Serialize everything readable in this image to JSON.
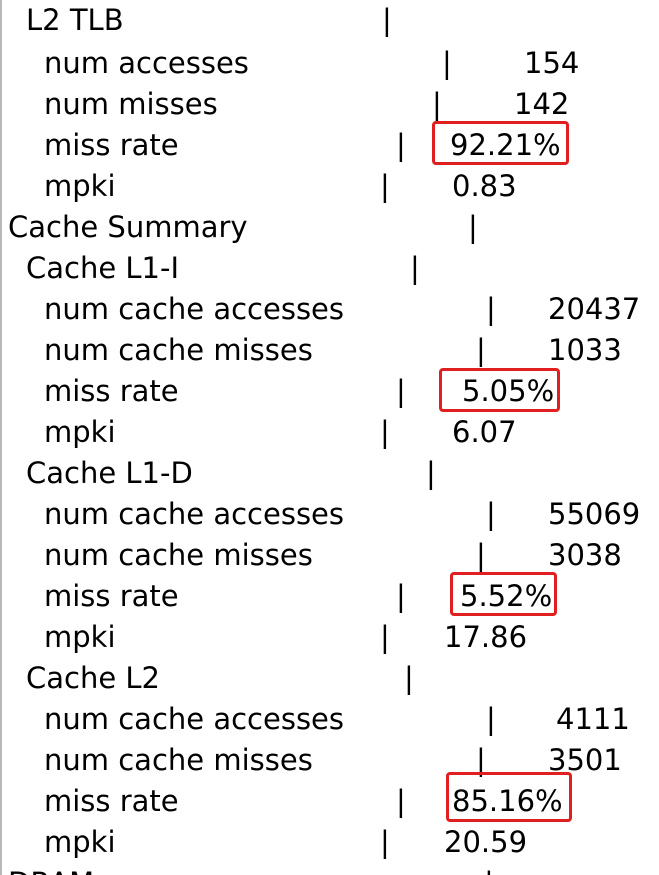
{
  "rows": [
    {
      "label": "L2 TLB",
      "sep": "|",
      "value": ""
    },
    {
      "label": "num accesses",
      "sep": "|",
      "value": "154"
    },
    {
      "label": "num misses",
      "sep": "|",
      "value": "142"
    },
    {
      "label": "miss rate",
      "sep": "|",
      "value": "92.21%"
    },
    {
      "label": "mpki",
      "sep": "|",
      "value": "0.83"
    },
    {
      "label": "Cache Summary",
      "sep": "|",
      "value": ""
    },
    {
      "label": "Cache L1-I",
      "sep": "|",
      "value": ""
    },
    {
      "label": "num cache accesses",
      "sep": "|",
      "value": "20437"
    },
    {
      "label": "num cache misses",
      "sep": "|",
      "value": "1033"
    },
    {
      "label": "miss rate",
      "sep": "|",
      "value": "5.05%"
    },
    {
      "label": "mpki",
      "sep": "|",
      "value": "6.07"
    },
    {
      "label": "Cache L1-D",
      "sep": "|",
      "value": ""
    },
    {
      "label": "num cache accesses",
      "sep": "|",
      "value": "55069"
    },
    {
      "label": "num cache misses",
      "sep": "|",
      "value": "3038"
    },
    {
      "label": "miss rate",
      "sep": "|",
      "value": "5.52%"
    },
    {
      "label": "mpki",
      "sep": "|",
      "value": "17.86"
    },
    {
      "label": "Cache L2",
      "sep": "|",
      "value": ""
    },
    {
      "label": "num cache accesses",
      "sep": "|",
      "value": "4111"
    },
    {
      "label": "num cache misses",
      "sep": "|",
      "value": "3501"
    },
    {
      "label": "miss rate",
      "sep": "|",
      "value": "85.16%"
    },
    {
      "label": "mpki",
      "sep": "|",
      "value": "20.59"
    },
    {
      "label": "DRAM",
      "sep": "|",
      "value": ""
    }
  ],
  "colors": {
    "highlight": "#e02020",
    "text": "#000000",
    "background": "#ffffff"
  }
}
